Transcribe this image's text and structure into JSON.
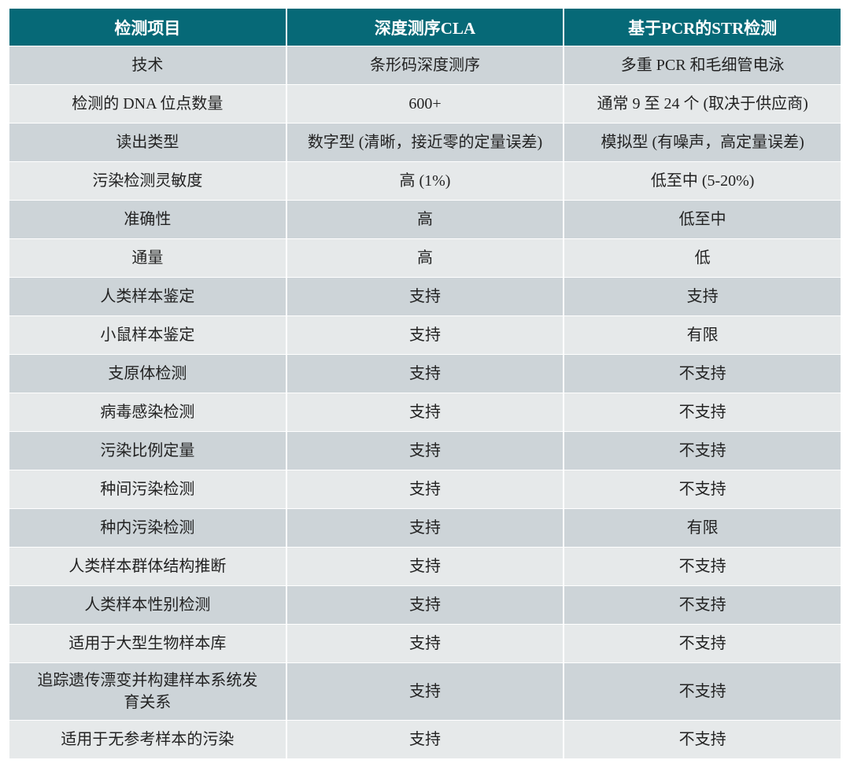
{
  "headers": [
    "检测项目",
    "深度测序CLA",
    "基于PCR的STR检测"
  ],
  "rows": [
    [
      "技术",
      "条形码深度测序",
      "多重 PCR 和毛细管电泳"
    ],
    [
      "检测的 DNA 位点数量",
      "600+",
      "通常 9 至 24 个 (取决于供应商)"
    ],
    [
      "读出类型",
      "数字型 (清晰，接近零的定量误差)",
      "模拟型 (有噪声，高定量误差)"
    ],
    [
      "污染检测灵敏度",
      "高 (1%)",
      "低至中 (5-20%)"
    ],
    [
      "准确性",
      "高",
      "低至中"
    ],
    [
      "通量",
      "高",
      "低"
    ],
    [
      "人类样本鉴定",
      "支持",
      "支持"
    ],
    [
      "小鼠样本鉴定",
      "支持",
      "有限"
    ],
    [
      "支原体检测",
      "支持",
      "不支持"
    ],
    [
      "病毒感染检测",
      "支持",
      "不支持"
    ],
    [
      "污染比例定量",
      "支持",
      "不支持"
    ],
    [
      "种间污染检测",
      "支持",
      "不支持"
    ],
    [
      "种内污染检测",
      "支持",
      "有限"
    ],
    [
      "人类样本群体结构推断",
      "支持",
      "不支持"
    ],
    [
      "人类样本性别检测",
      "支持",
      "不支持"
    ],
    [
      "适用于大型生物样本库",
      "支持",
      "不支持"
    ],
    [
      "追踪遗传漂变并构建样本系统发育关系",
      "支持",
      "不支持"
    ],
    [
      "适用于无参考样本的污染",
      "支持",
      "不支持"
    ]
  ],
  "colors": {
    "header": "#066977",
    "row_dark": "#cdd4d8",
    "row_light": "#e6e9ea"
  }
}
